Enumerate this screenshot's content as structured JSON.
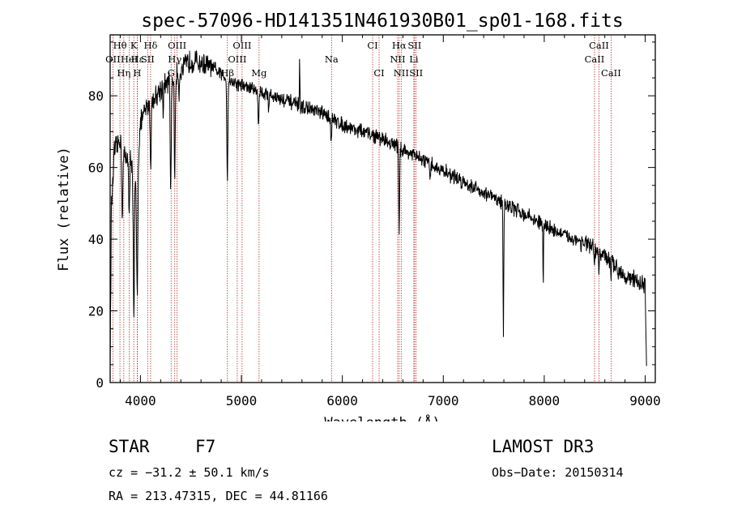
{
  "chart_data": {
    "type": "line",
    "title": "spec-57096-HD141351N461930B01_sp01-168.fits",
    "xlabel": "Wavelength (Å)",
    "ylabel": "Flux (relative)",
    "xlim": [
      3700,
      9100
    ],
    "ylim": [
      0,
      97
    ],
    "xticks": [
      4000,
      5000,
      6000,
      7000,
      8000,
      9000
    ],
    "yticks": [
      0,
      20,
      40,
      60,
      80
    ],
    "grid": false,
    "series": [
      {
        "name": "flux",
        "continuum": [
          [
            3700,
            5
          ],
          [
            3712,
            48
          ],
          [
            3740,
            64
          ],
          [
            3800,
            68
          ],
          [
            3850,
            62
          ],
          [
            3900,
            66
          ],
          [
            3940,
            52
          ],
          [
            3970,
            62
          ],
          [
            4000,
            72
          ],
          [
            4050,
            76
          ],
          [
            4100,
            78
          ],
          [
            4150,
            80
          ],
          [
            4200,
            82
          ],
          [
            4300,
            84
          ],
          [
            4400,
            87
          ],
          [
            4500,
            90
          ],
          [
            4600,
            89
          ],
          [
            4700,
            88
          ],
          [
            4800,
            86
          ],
          [
            4900,
            84
          ],
          [
            5000,
            83
          ],
          [
            5100,
            82
          ],
          [
            5200,
            81
          ],
          [
            5400,
            79
          ],
          [
            5600,
            77
          ],
          [
            5800,
            75
          ],
          [
            6000,
            72
          ],
          [
            6200,
            70
          ],
          [
            6400,
            68
          ],
          [
            6600,
            65
          ],
          [
            6800,
            62
          ],
          [
            7000,
            59
          ],
          [
            7200,
            56
          ],
          [
            7400,
            53
          ],
          [
            7600,
            50
          ],
          [
            7800,
            47
          ],
          [
            8000,
            44
          ],
          [
            8200,
            41
          ],
          [
            8400,
            39
          ],
          [
            8600,
            35
          ],
          [
            8800,
            30
          ],
          [
            9000,
            27
          ],
          [
            9010,
            10
          ],
          [
            9015,
            2
          ]
        ],
        "absorption_features": [
          {
            "w": 3820,
            "depth": 18,
            "width": 8
          },
          {
            "w": 3889,
            "depth": 20,
            "width": 8
          },
          {
            "w": 3934,
            "depth": 38,
            "width": 7
          },
          {
            "w": 3968,
            "depth": 36,
            "width": 9
          },
          {
            "w": 4101,
            "depth": 18,
            "width": 7
          },
          {
            "w": 4226,
            "depth": 6,
            "width": 5
          },
          {
            "w": 4300,
            "depth": 32,
            "width": 7
          },
          {
            "w": 4340,
            "depth": 28,
            "width": 7
          },
          {
            "w": 4383,
            "depth": 6,
            "width": 5
          },
          {
            "w": 4861,
            "depth": 28,
            "width": 7
          },
          {
            "w": 5169,
            "depth": 10,
            "width": 6
          },
          {
            "w": 5270,
            "depth": 4,
            "width": 5
          },
          {
            "w": 5890,
            "depth": 6,
            "width": 6
          },
          {
            "w": 6563,
            "depth": 24,
            "width": 6
          },
          {
            "w": 6867,
            "depth": 4,
            "width": 8
          },
          {
            "w": 7595,
            "depth": 38,
            "width": 5
          },
          {
            "w": 7990,
            "depth": 18,
            "width": 4
          },
          {
            "w": 8498,
            "depth": 6,
            "width": 4
          },
          {
            "w": 8542,
            "depth": 7,
            "width": 4
          },
          {
            "w": 8662,
            "depth": 7,
            "width": 4
          }
        ],
        "emission_features": [
          {
            "w": 5577,
            "height": 12,
            "width": 3
          }
        ],
        "noise_amplitude": 3.2
      }
    ],
    "spectral_lines": [
      {
        "label": "Hθ",
        "w": 3797,
        "row": 0
      },
      {
        "label": "K",
        "w": 3934,
        "row": 0
      },
      {
        "label": "Hδ",
        "w": 4101,
        "row": 0
      },
      {
        "label": "OII",
        "w": 3727,
        "row": 1
      },
      {
        "label": "Hε",
        "w": 3970,
        "row": 1
      },
      {
        "label": "SII",
        "w": 4072,
        "row": 1
      },
      {
        "label": "Hη",
        "w": 3835,
        "row": 2
      },
      {
        "label": "H",
        "w": 3968,
        "row": 2
      },
      {
        "label": "HeI",
        "w": 3889,
        "row": 1
      },
      {
        "label": "OIII",
        "w": 4363,
        "row": 0
      },
      {
        "label": "Hγ",
        "w": 4340,
        "row": 1
      },
      {
        "label": "G",
        "w": 4304,
        "row": 2
      },
      {
        "label": "OIII",
        "w": 5007,
        "row": 0
      },
      {
        "label": "OIII",
        "w": 4959,
        "row": 1
      },
      {
        "label": "Hβ",
        "w": 4861,
        "row": 2
      },
      {
        "label": "Mg",
        "w": 5175,
        "row": 2
      },
      {
        "label": "Na",
        "w": 5893,
        "row": 1
      },
      {
        "label": "CI",
        "w": 6300,
        "row": 0
      },
      {
        "label": "CI",
        "w": 6364,
        "row": 2
      },
      {
        "label": "Hα",
        "w": 6563,
        "row": 0
      },
      {
        "label": "NII",
        "w": 6548,
        "row": 1
      },
      {
        "label": "NII",
        "w": 6583,
        "row": 2
      },
      {
        "label": "SII",
        "w": 6716,
        "row": 0
      },
      {
        "label": "Li",
        "w": 6708,
        "row": 1
      },
      {
        "label": "SII",
        "w": 6731,
        "row": 2
      },
      {
        "label": "CaII",
        "w": 8542,
        "row": 0
      },
      {
        "label": "CaII",
        "w": 8498,
        "row": 1
      },
      {
        "label": "CaII",
        "w": 8662,
        "row": 2
      }
    ]
  },
  "object_class": "STAR",
  "subclass": "F7",
  "survey": "LAMOST DR3",
  "redshift_text": "cz = −31.2 ± 50.1 km/s",
  "obs_date_text": "Obs−Date: 20150314",
  "coords_text": "RA = 213.47315, DEC =  44.81166",
  "colors": {
    "spectrum": "#000000",
    "line_marker": "#b03030",
    "axes": "#000000"
  }
}
